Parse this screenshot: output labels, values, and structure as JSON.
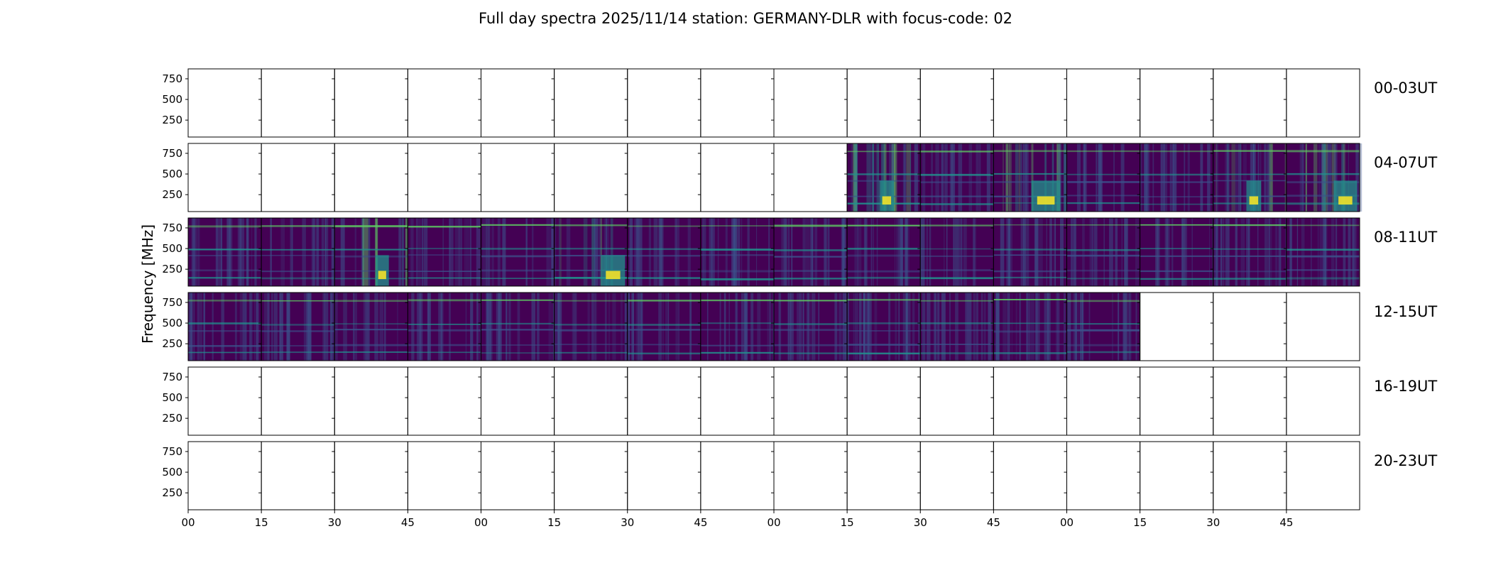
{
  "chart_data": {
    "type": "heatmap",
    "title": "Full day spectra 2025/11/14 station: GERMANY-DLR with focus-code: 02",
    "ylabel": "Frequency [MHz]",
    "xlabel": "",
    "yticks": [
      "750",
      "500",
      "250"
    ],
    "ytick_values": [
      750,
      500,
      250
    ],
    "ylim": [
      45,
      870
    ],
    "xticks": [
      "00",
      "15",
      "30",
      "45",
      "00",
      "15",
      "30",
      "45",
      "00",
      "15",
      "30",
      "45",
      "00",
      "15",
      "30",
      "45"
    ],
    "colormap": "viridis",
    "colors": {
      "low": "#440154",
      "mid_low": "#3b528b",
      "mid": "#21918c",
      "mid_high": "#5ec962",
      "high": "#fde725"
    },
    "rows": [
      {
        "label": "00-03UT",
        "panels_with_data": [],
        "hot_panels": []
      },
      {
        "label": "04-07UT",
        "panels_with_data": [
          9,
          10,
          11,
          12,
          13,
          14,
          15
        ],
        "hot_panels": [
          9,
          11,
          14,
          15
        ]
      },
      {
        "label": "08-11UT",
        "panels_with_data": [
          0,
          1,
          2,
          3,
          4,
          5,
          6,
          7,
          8,
          9,
          10,
          11,
          12,
          13,
          14,
          15
        ],
        "hot_panels": [
          2,
          5
        ]
      },
      {
        "label": "12-15UT",
        "panels_with_data": [
          0,
          1,
          2,
          3,
          4,
          5,
          6,
          7,
          8,
          9,
          10,
          11,
          12
        ],
        "hot_panels": []
      },
      {
        "label": "16-19UT",
        "panels_with_data": [],
        "hot_panels": []
      },
      {
        "label": "20-23UT",
        "panels_with_data": [],
        "hot_panels": []
      }
    ]
  }
}
